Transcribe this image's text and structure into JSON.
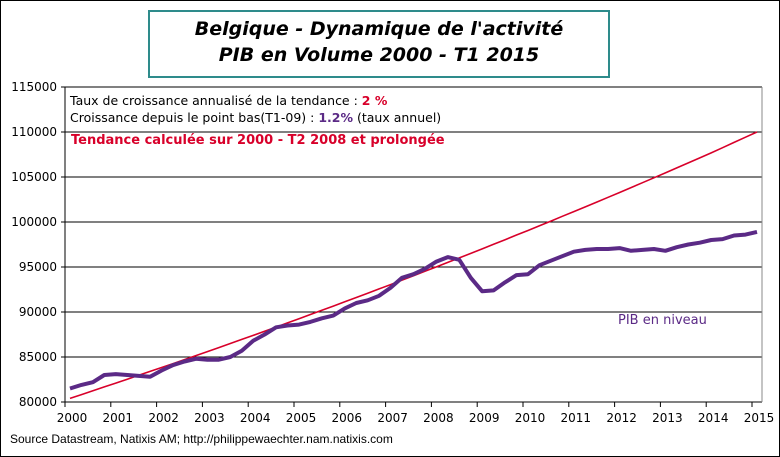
{
  "chart_data": {
    "type": "line",
    "title": [
      "Belgique - Dynamique de l'activité",
      "PIB en Volume 2000 - T1 2015"
    ],
    "xlabel": "",
    "ylabel": "",
    "ylim": [
      80000,
      115000
    ],
    "yticks": [
      "80000",
      "85000",
      "90000",
      "95000",
      "100000",
      "105000",
      "110000",
      "115000"
    ],
    "xticks": [
      "2000",
      "2001",
      "2002",
      "2003",
      "2004",
      "2005",
      "2006",
      "2007",
      "2008",
      "2009",
      "2010",
      "2011",
      "2012",
      "2013",
      "2014",
      "2015"
    ],
    "x_frequency": "quarterly, 2000 T1 - 2015 T1",
    "grid": "horizontal",
    "series": [
      {
        "name": "PIB en niveau",
        "color": "#5b2a86",
        "values": [
          81500,
          81900,
          82200,
          83000,
          83100,
          83000,
          82900,
          82800,
          83500,
          84100,
          84500,
          84800,
          84700,
          84700,
          85000,
          85700,
          86800,
          87500,
          88300,
          88500,
          88600,
          88900,
          89300,
          89600,
          90400,
          91000,
          91300,
          91800,
          92700,
          93800,
          94200,
          94800,
          95600,
          96100,
          95800,
          93800,
          92300,
          92400,
          93300,
          94100,
          94200,
          95200,
          95700,
          96200,
          96700,
          96900,
          97000,
          97000,
          97100,
          96800,
          96900,
          97000,
          96800,
          97200,
          97500,
          97700,
          98000,
          98100,
          98500,
          98600,
          98900
        ]
      },
      {
        "color": "#d8002a",
        "values": [
          80400,
          80825,
          81250,
          81675,
          82100,
          82530,
          82965,
          83400,
          83830,
          84270,
          84715,
          85160,
          85600,
          86050,
          86500,
          86950,
          87400,
          87860,
          88325,
          88790,
          89250,
          89720,
          90190,
          90660,
          91130,
          91610,
          92090,
          92570,
          93050,
          93540,
          94030,
          94520,
          95010,
          95510,
          96010,
          96510,
          97010,
          97520,
          98035,
          98550,
          99060,
          99580,
          100105,
          100630,
          101150,
          101680,
          102215,
          102750,
          103280,
          103825,
          104370,
          104915,
          105460,
          106015,
          106570,
          107125,
          107680,
          108260,
          108840,
          109420,
          110000
        ]
      }
    ],
    "annotations": {
      "line1_text": "Taux de croissance annualisé de la tendance :",
      "line1_value": "2 %",
      "line2_text": "Croissance depuis le point bas(T1-09) :",
      "line2_value": "1.2%",
      "line2_suffix": "(taux annuel)",
      "line3": "Tendance calculée sur 2000 - T2 2008 et prolongée",
      "series_label": "PIB en niveau"
    }
  },
  "source": "Source Datastream, Natixis AM;  http://philippewaechter.nam.natixis.com"
}
